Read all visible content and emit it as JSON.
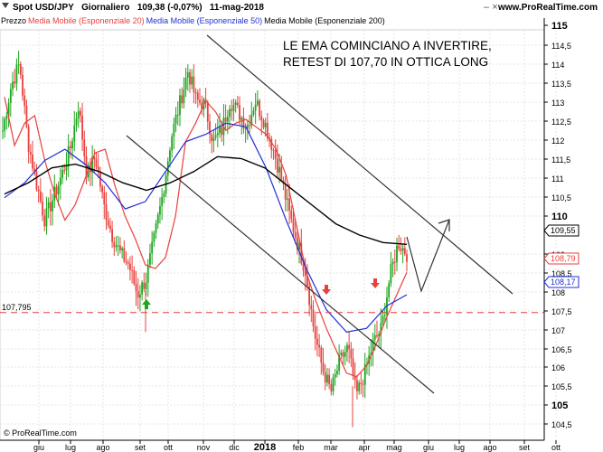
{
  "header": {
    "symbol_title": "Spot USD/JPY",
    "timeframe": "Giornaliero",
    "last_price": "109,38 (-0,07%)",
    "date": "11-mag-2018",
    "website": "www.ProRealTime.com"
  },
  "legend": {
    "price_label": "Prezzo",
    "items": [
      {
        "label": "Media Mobile (Esponenziale 20)",
        "color": "#e8413d"
      },
      {
        "label": "Media Mobile (Esponenziale 50)",
        "color": "#1f2fd6"
      },
      {
        "label": "Media Mobile (Esponenziale 200)",
        "color": "#000000"
      }
    ]
  },
  "annotation": {
    "line1": "LE EMA COMINCIANO A INVERTIRE,",
    "line2": "RETEST DI 107,70 IN OTTICA LONG"
  },
  "copyright": "© ProRealTime.com",
  "chart_data": {
    "type": "candlestick",
    "ylim": [
      104.3,
      115.3
    ],
    "y_ticks": [
      {
        "label": "115",
        "bold": true
      },
      {
        "label": "114,5",
        "bold": false
      },
      {
        "label": "114",
        "bold": false
      },
      {
        "label": "113,5",
        "bold": false
      },
      {
        "label": "113",
        "bold": false
      },
      {
        "label": "112,5",
        "bold": false
      },
      {
        "label": "112",
        "bold": false
      },
      {
        "label": "111,5",
        "bold": false
      },
      {
        "label": "111",
        "bold": false
      },
      {
        "label": "110,5",
        "bold": false
      },
      {
        "label": "110",
        "bold": true
      },
      {
        "label": "109",
        "bold": false
      },
      {
        "label": "108,5",
        "bold": false
      },
      {
        "label": "108",
        "bold": false
      },
      {
        "label": "107,5",
        "bold": false
      },
      {
        "label": "107",
        "bold": false
      },
      {
        "label": "106,5",
        "bold": false
      },
      {
        "label": "106",
        "bold": false
      },
      {
        "label": "105,5",
        "bold": false
      },
      {
        "label": "105",
        "bold": true
      },
      {
        "label": "104,5",
        "bold": false
      }
    ],
    "x_ticks": [
      {
        "label": "giu",
        "bold": false
      },
      {
        "label": "lug",
        "bold": false
      },
      {
        "label": "ago",
        "bold": false
      },
      {
        "label": "set",
        "bold": false
      },
      {
        "label": "ott",
        "bold": false
      },
      {
        "label": "nov",
        "bold": false
      },
      {
        "label": "dic",
        "bold": false
      },
      {
        "label": "2018",
        "bold": true
      },
      {
        "label": "feb",
        "bold": false
      },
      {
        "label": "mar",
        "bold": false
      },
      {
        "label": "apr",
        "bold": false
      },
      {
        "label": "mag",
        "bold": false
      },
      {
        "label": "giu",
        "bold": false
      },
      {
        "label": "lug",
        "bold": false
      },
      {
        "label": "ago",
        "bold": false
      },
      {
        "label": "set",
        "bold": false
      },
      {
        "label": "ott",
        "bold": false
      }
    ],
    "support_level": {
      "value": 107.795,
      "label": "107,795",
      "color": "#e8413d"
    },
    "price_tags": [
      {
        "label": "109,55",
        "color": "#000000",
        "text_color": "#000000"
      },
      {
        "label": "108,79",
        "color": "#e8413d",
        "text_color": "#e8413d"
      },
      {
        "label": "108,17",
        "color": "#1f2fd6",
        "text_color": "#1f2fd6"
      }
    ],
    "signal_arrows": [
      {
        "direction": "up",
        "color": "#1fa51f"
      },
      {
        "direction": "down",
        "color": "#e8413d"
      },
      {
        "direction": "down",
        "color": "#e8413d"
      }
    ],
    "price_keypoints": [
      112.6,
      113.8,
      114.4,
      112.3,
      111.2,
      110.2,
      110.8,
      111.4,
      112.1,
      113.3,
      111.4,
      111.9,
      110.6,
      109.8,
      109.3,
      109.0,
      108.2,
      108.6,
      109.7,
      110.9,
      112.4,
      113.3,
      114.2,
      113.4,
      113.3,
      112.3,
      112.6,
      113.4,
      113.1,
      112.7,
      113.4,
      112.9,
      112.2,
      111.4,
      110.4,
      109.6,
      108.8,
      107.2,
      106.2,
      105.6,
      106.4,
      106.8,
      105.5,
      106.1,
      106.9,
      107.3,
      108.7,
      109.6,
      109.3
    ],
    "series": [
      {
        "name": "Media Mobile (Esponenziale 20)",
        "color": "#e8413d",
        "values": [
          113.5,
          112.2,
          112.8,
          113.0,
          111.8,
          110.9,
          110.2,
          110.6,
          111.3,
          112.0,
          112.1,
          111.1,
          110.3,
          109.7,
          109.0,
          108.9,
          109.2,
          110.3,
          112.3,
          112.8,
          113.4,
          113.1,
          112.6,
          112.8,
          112.9,
          112.7,
          112.5,
          112.1,
          111.4,
          110.1,
          108.8,
          108.0,
          107.3,
          106.7,
          106.1,
          106.0,
          106.3,
          106.9,
          107.6,
          108.2,
          108.8
        ]
      },
      {
        "name": "Media Mobile (Esponenziale 50)",
        "color": "#1f2fd6",
        "values": [
          110.8,
          111.2,
          111.8,
          112.1,
          111.7,
          111.2,
          110.5,
          110.7,
          111.5,
          112.3,
          112.5,
          112.8,
          112.7,
          111.6,
          110.2,
          108.9,
          107.8,
          107.2,
          107.3,
          107.9,
          108.2
        ]
      },
      {
        "name": "Media Mobile (Esponenziale 200)",
        "color": "#000000",
        "values": [
          110.9,
          111.2,
          111.6,
          111.7,
          111.5,
          111.2,
          111.0,
          111.2,
          111.5,
          111.9,
          111.85,
          111.6,
          111.1,
          110.6,
          110.1,
          109.8,
          109.6,
          109.55
        ]
      }
    ]
  }
}
